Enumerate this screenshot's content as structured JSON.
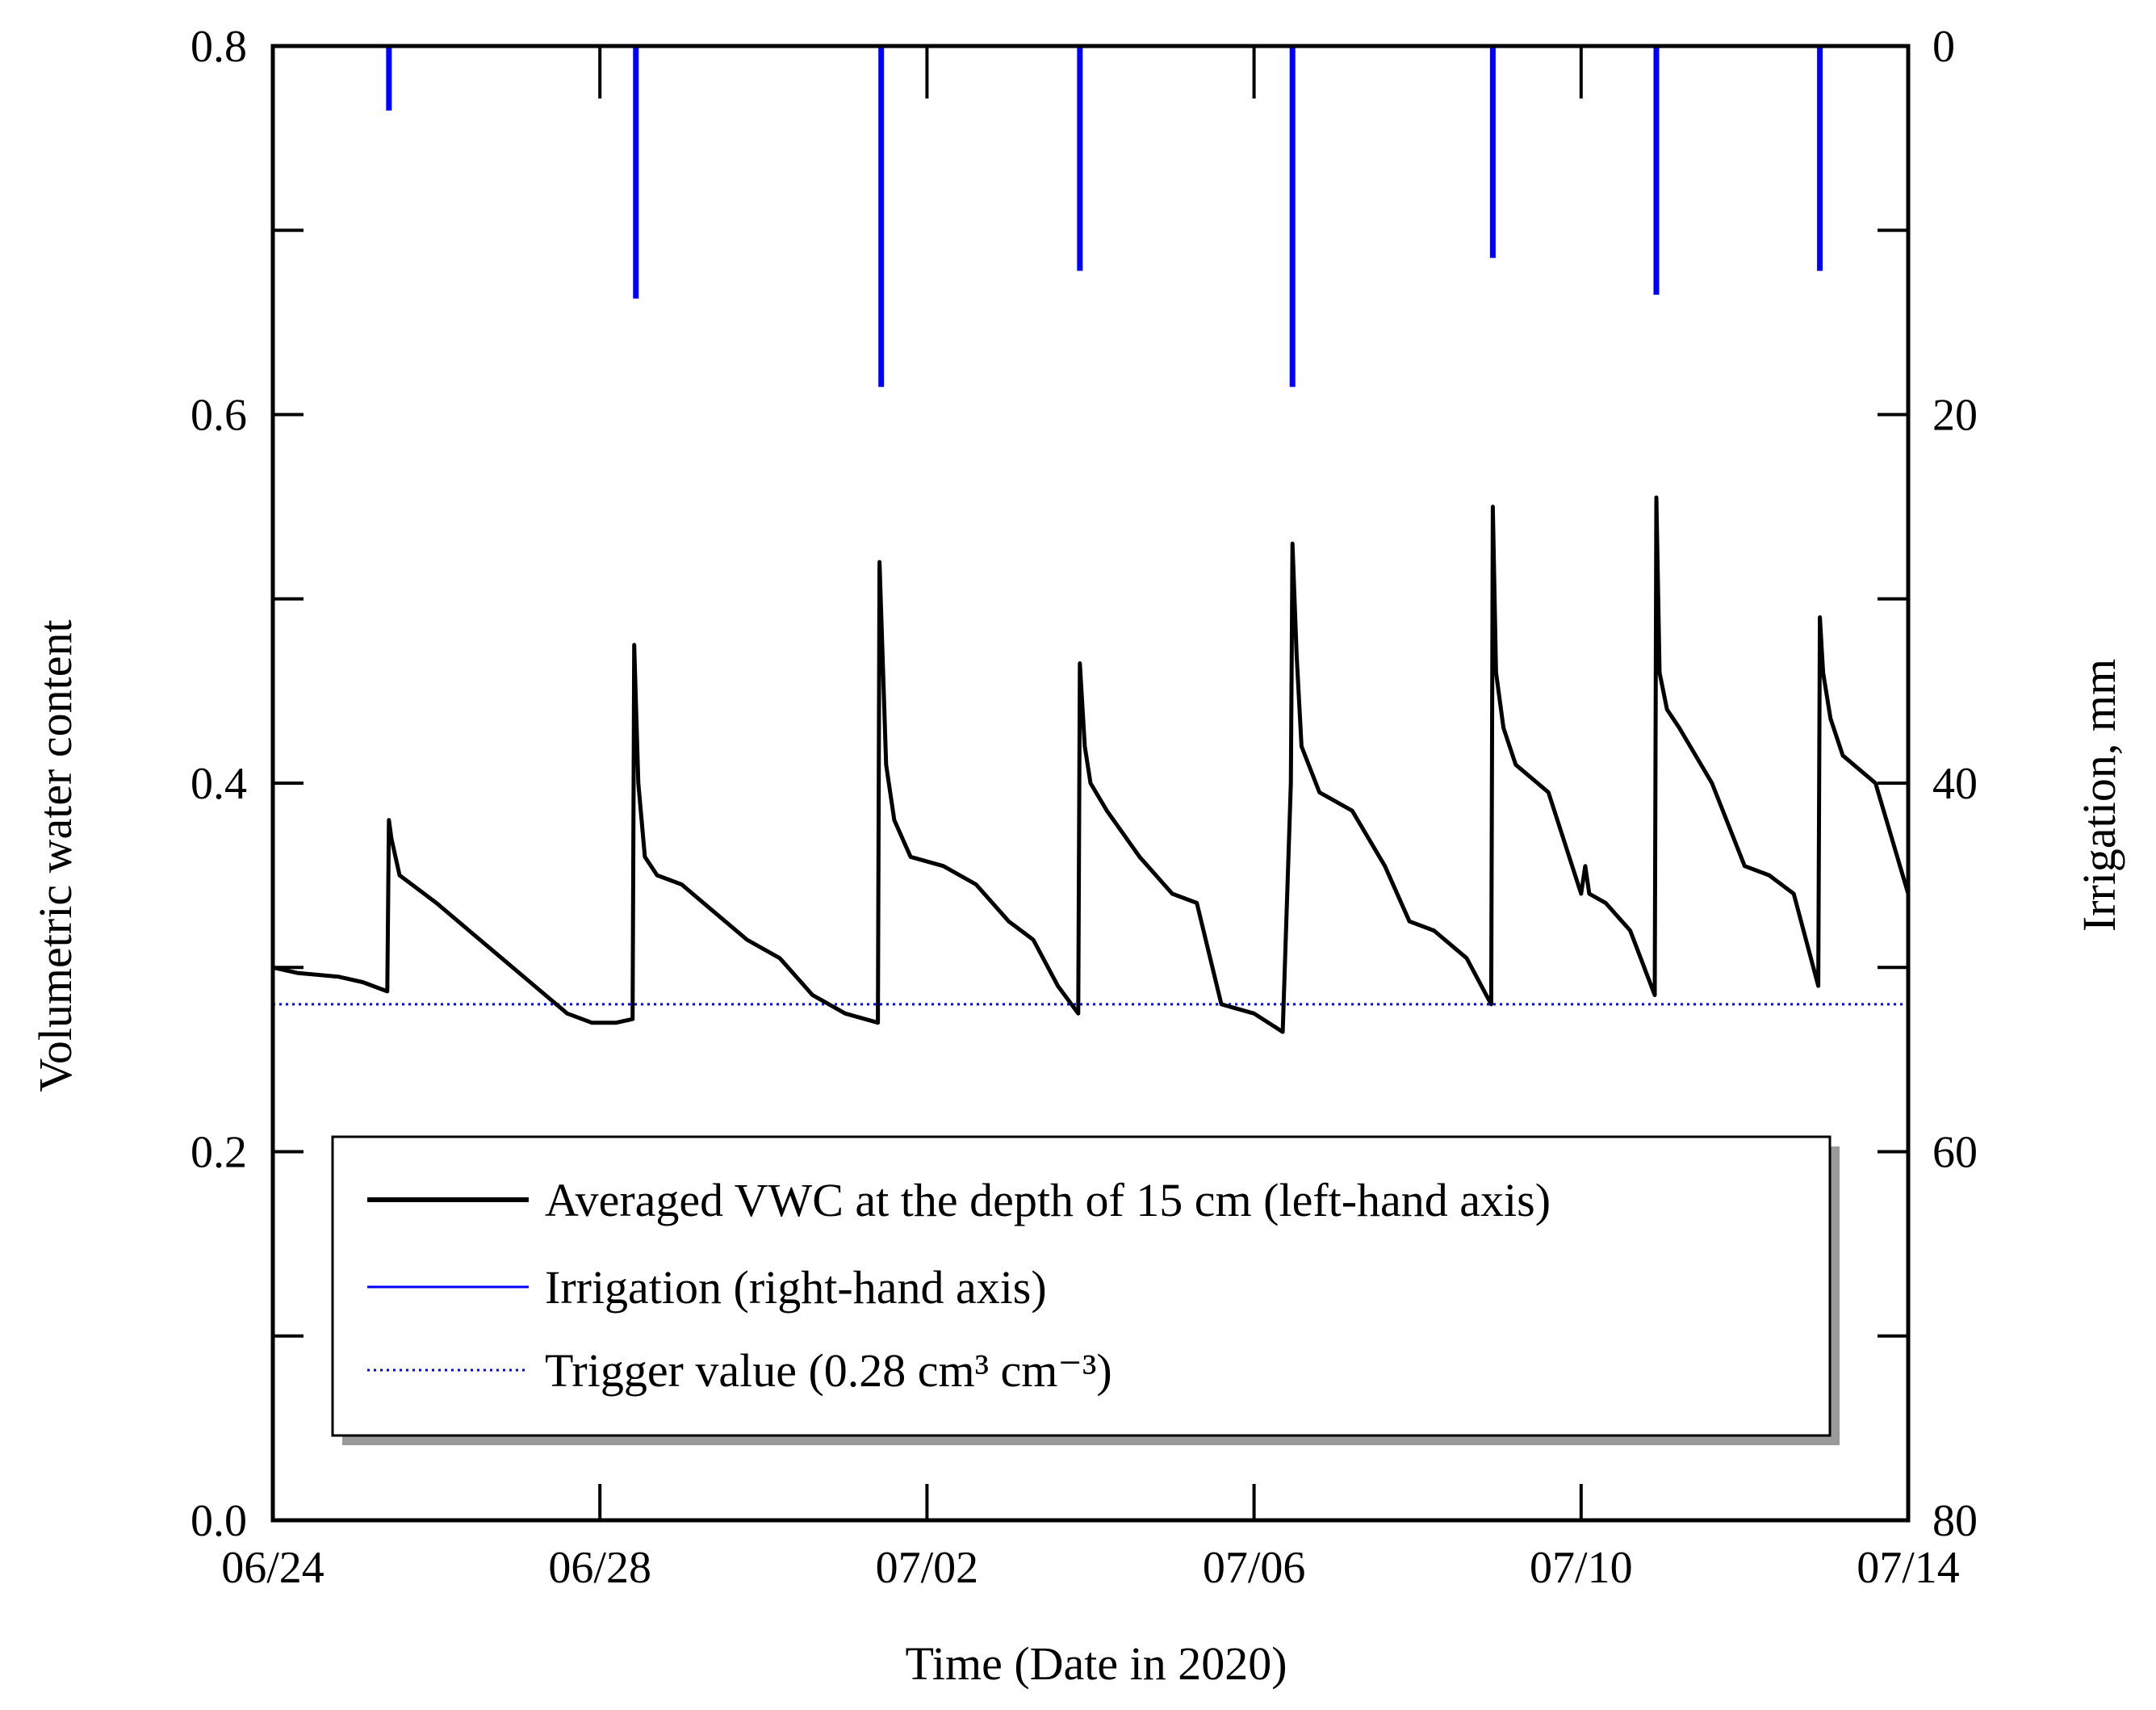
{
  "chart_data": {
    "type": "line",
    "title": "",
    "xlabel": "Time (Date in 2020)",
    "ylabel": "Volumetric water content",
    "y2label": "Irrigation, mm",
    "x_tick_labels": [
      "06/24",
      "06/28",
      "07/02",
      "07/06",
      "07/10",
      "07/14"
    ],
    "x_tick_days": [
      0,
      4,
      8,
      12,
      16,
      20
    ],
    "xlim_days": [
      0,
      20
    ],
    "ylim": [
      0.0,
      0.8
    ],
    "y_tick_labels": [
      "0.0",
      "0.2",
      "0.4",
      "0.6",
      "0.8"
    ],
    "y_ticks": [
      0.0,
      0.1,
      0.2,
      0.3,
      0.4,
      0.5,
      0.6,
      0.7,
      0.8
    ],
    "y2lim": [
      0,
      80
    ],
    "y2_inverted": true,
    "y2_tick_labels": [
      "0",
      "20",
      "40",
      "60",
      "80"
    ],
    "y2_ticks": [
      0,
      10,
      20,
      30,
      40,
      50,
      60,
      70,
      80
    ],
    "legend_position": "lower-center",
    "series": [
      {
        "name": "Averaged VWC at the depth of 15 cm (left-hand axis)",
        "axis": "left",
        "color": "#000000",
        "style": "solid",
        "x_days": [
          0,
          0.3,
          0.8,
          1.1,
          1.4,
          1.42,
          1.45,
          1.55,
          1.7,
          2.0,
          2.4,
          2.8,
          3.2,
          3.6,
          3.9,
          4.2,
          4.4,
          4.42,
          4.47,
          4.55,
          4.7,
          5.0,
          5.4,
          5.8,
          6.2,
          6.6,
          7.0,
          7.4,
          7.42,
          7.5,
          7.6,
          7.8,
          8.2,
          8.6,
          9.0,
          9.3,
          9.6,
          9.85,
          9.87,
          9.93,
          10.0,
          10.2,
          10.6,
          11.0,
          11.3,
          11.6,
          12.0,
          12.35,
          12.45,
          12.47,
          12.52,
          12.58,
          12.8,
          13.2,
          13.6,
          13.9,
          14.2,
          14.6,
          14.9,
          14.92,
          14.96,
          15.05,
          15.2,
          15.6,
          16.0,
          16.05,
          16.1,
          16.3,
          16.6,
          16.9,
          16.92,
          16.96,
          17.05,
          17.2,
          17.6,
          18.0,
          18.3,
          18.6,
          18.9,
          18.92,
          18.96,
          19.05,
          19.2,
          19.6,
          20.0
        ],
        "values": [
          0.3,
          0.297,
          0.295,
          0.292,
          0.287,
          0.38,
          0.37,
          0.35,
          0.345,
          0.335,
          0.32,
          0.305,
          0.29,
          0.275,
          0.27,
          0.27,
          0.272,
          0.475,
          0.4,
          0.36,
          0.35,
          0.345,
          0.33,
          0.315,
          0.305,
          0.285,
          0.275,
          0.27,
          0.52,
          0.41,
          0.38,
          0.36,
          0.355,
          0.345,
          0.325,
          0.315,
          0.29,
          0.275,
          0.465,
          0.42,
          0.4,
          0.385,
          0.36,
          0.34,
          0.335,
          0.28,
          0.275,
          0.265,
          0.4,
          0.53,
          0.47,
          0.42,
          0.395,
          0.385,
          0.355,
          0.325,
          0.32,
          0.305,
          0.28,
          0.55,
          0.46,
          0.43,
          0.41,
          0.395,
          0.34,
          0.355,
          0.34,
          0.335,
          0.32,
          0.285,
          0.555,
          0.46,
          0.44,
          0.43,
          0.4,
          0.355,
          0.35,
          0.34,
          0.29,
          0.49,
          0.46,
          0.435,
          0.415,
          0.4,
          0.34
        ]
      },
      {
        "name": "Irrigation (right-hand axis)",
        "axis": "right",
        "color": "#0000ff",
        "style": "bars",
        "x_days": [
          1.42,
          4.44,
          7.44,
          9.87,
          12.47,
          14.92,
          16.92,
          18.92
        ],
        "values": [
          3.5,
          13.7,
          18.5,
          12.2,
          18.5,
          11.5,
          13.5,
          12.2
        ]
      },
      {
        "name": "Trigger value (0.28 cm³ cm⁻³)",
        "axis": "left",
        "color": "#0000ff",
        "style": "dotted",
        "value": 0.28
      }
    ]
  }
}
